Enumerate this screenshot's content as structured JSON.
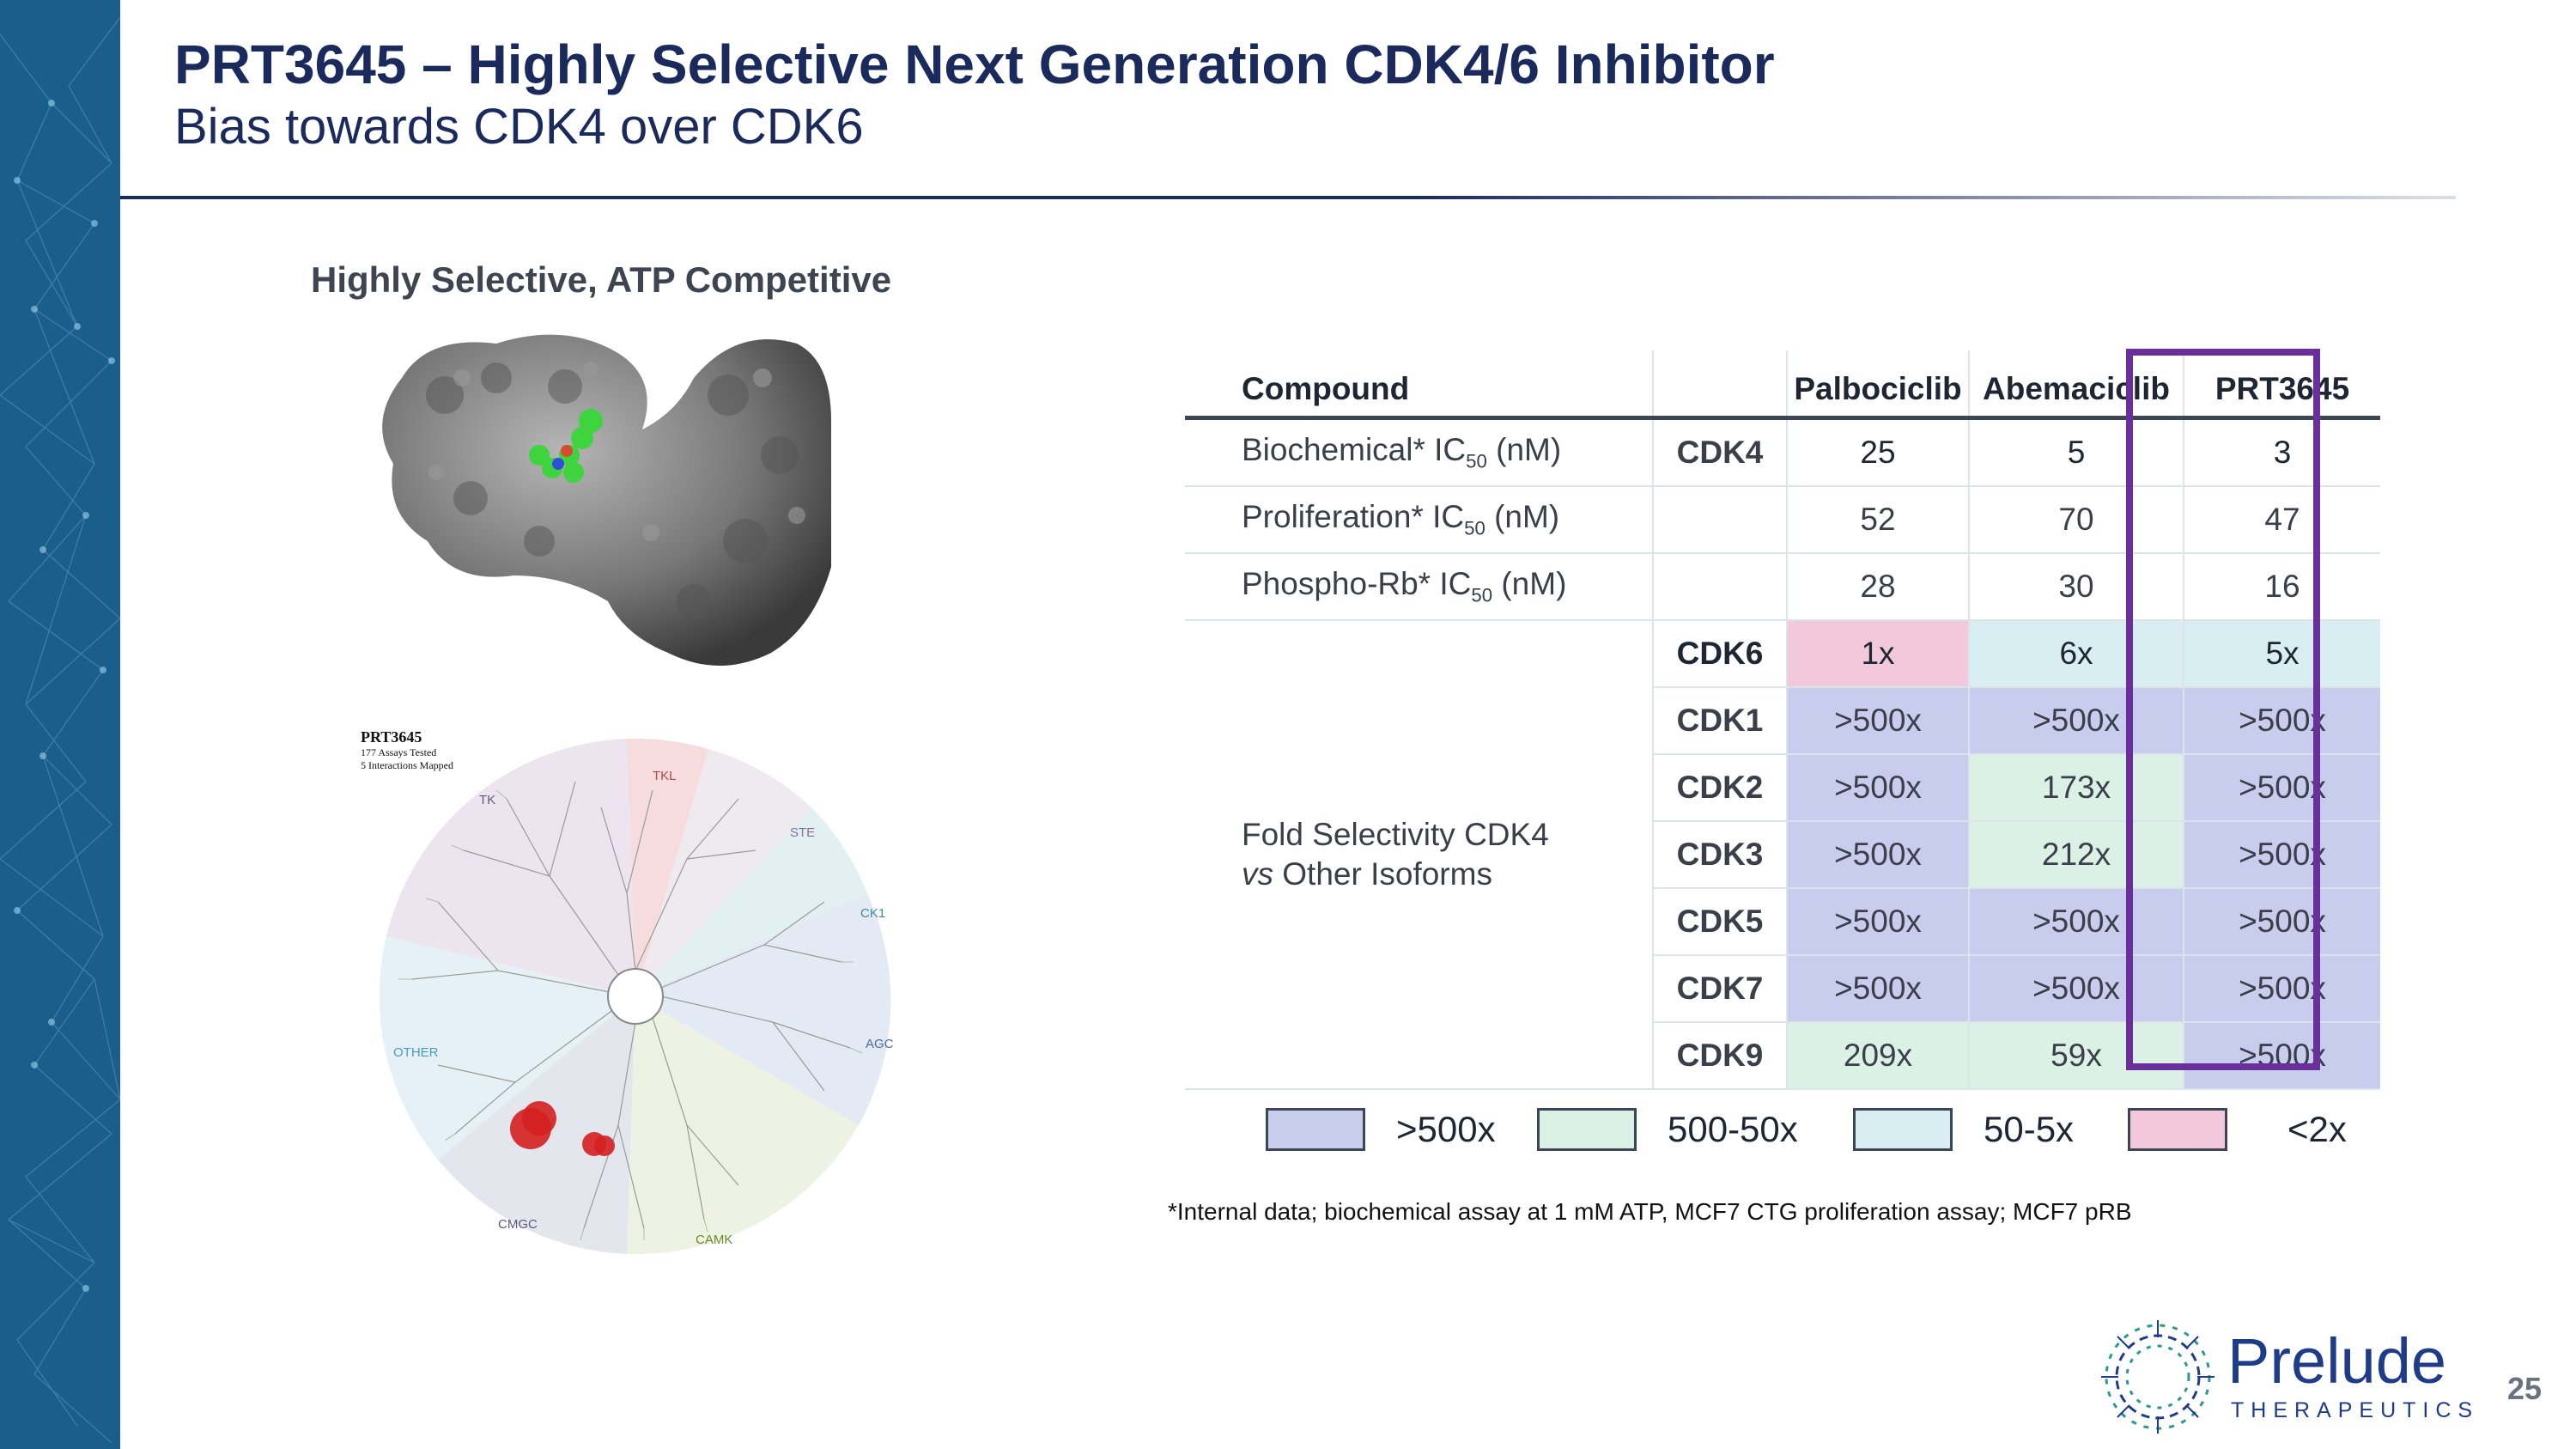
{
  "header": {
    "title": "PRT3645 – Highly Selective Next Generation CDK4/6 Inhibitor",
    "subtitle": "Bias towards CDK4 over CDK6"
  },
  "left_panel": {
    "section_label": "Highly Selective, ATP Competitive",
    "kinome": {
      "compound": "PRT3645",
      "assays_line": "177 Assays Tested",
      "interactions_line": "5 Interactions Mapped",
      "groups": [
        "TKL",
        "STE",
        "CK1",
        "AGC",
        "CAMK",
        "CMGC",
        "OTHER",
        "TK"
      ]
    }
  },
  "table": {
    "headers": {
      "param": "Compound",
      "target": "",
      "col1": "Palbociclib",
      "col2": "Abemaciclib",
      "col3": "PRT3645"
    },
    "potency_rows": [
      {
        "param": "Biochemical* IC",
        "sub": "50",
        "unit": " (nM)",
        "target": "CDK4",
        "v1": "25",
        "v2": "5",
        "v3": "3"
      },
      {
        "param": "Proliferation* IC",
        "sub": "50",
        "unit": " (nM)",
        "target": "",
        "v1": "52",
        "v2": "70",
        "v3": "47"
      },
      {
        "param": "Phospho-Rb* IC",
        "sub": "50",
        "unit": " (nM)",
        "target": "",
        "v1": "28",
        "v2": "30",
        "v3": "16"
      }
    ],
    "fold_label_line1": "Fold Selectivity CDK4",
    "fold_label_vs": "vs",
    "fold_label_line2_rest": " Other Isoforms",
    "selectivity_rows": [
      {
        "target": "CDK6",
        "v1": "1x",
        "v2": "6x",
        "v3": "5x"
      },
      {
        "target": "CDK1",
        "v1": ">500x",
        "v2": ">500x",
        "v3": ">500x"
      },
      {
        "target": "CDK2",
        "v1": ">500x",
        "v2": "173x",
        "v3": ">500x"
      },
      {
        "target": "CDK3",
        "v1": ">500x",
        "v2": "212x",
        "v3": ">500x"
      },
      {
        "target": "CDK5",
        "v1": ">500x",
        "v2": ">500x",
        "v3": ">500x"
      },
      {
        "target": "CDK7",
        "v1": ">500x",
        "v2": ">500x",
        "v3": ">500x"
      },
      {
        "target": "CDK9",
        "v1": "209x",
        "v2": "59x",
        "v3": ">500x"
      }
    ]
  },
  "legend": [
    {
      "label": ">500x",
      "color": "#c8cdee"
    },
    {
      "label": "500-50x",
      "color": "#dcf1e6"
    },
    {
      "label": "50-5x",
      "color": "#d8eef0"
    },
    {
      "label": "<2x",
      "color": "#f1c9db"
    }
  ],
  "footnote": "*Internal data; biochemical assay at 1 mM ATP, MCF7 CTG proliferation assay; MCF7 pRB",
  "brand": {
    "name": "Prelude",
    "tagline": "THERAPEUTICS",
    "color": "#1f3c88"
  },
  "page_number": "25"
}
